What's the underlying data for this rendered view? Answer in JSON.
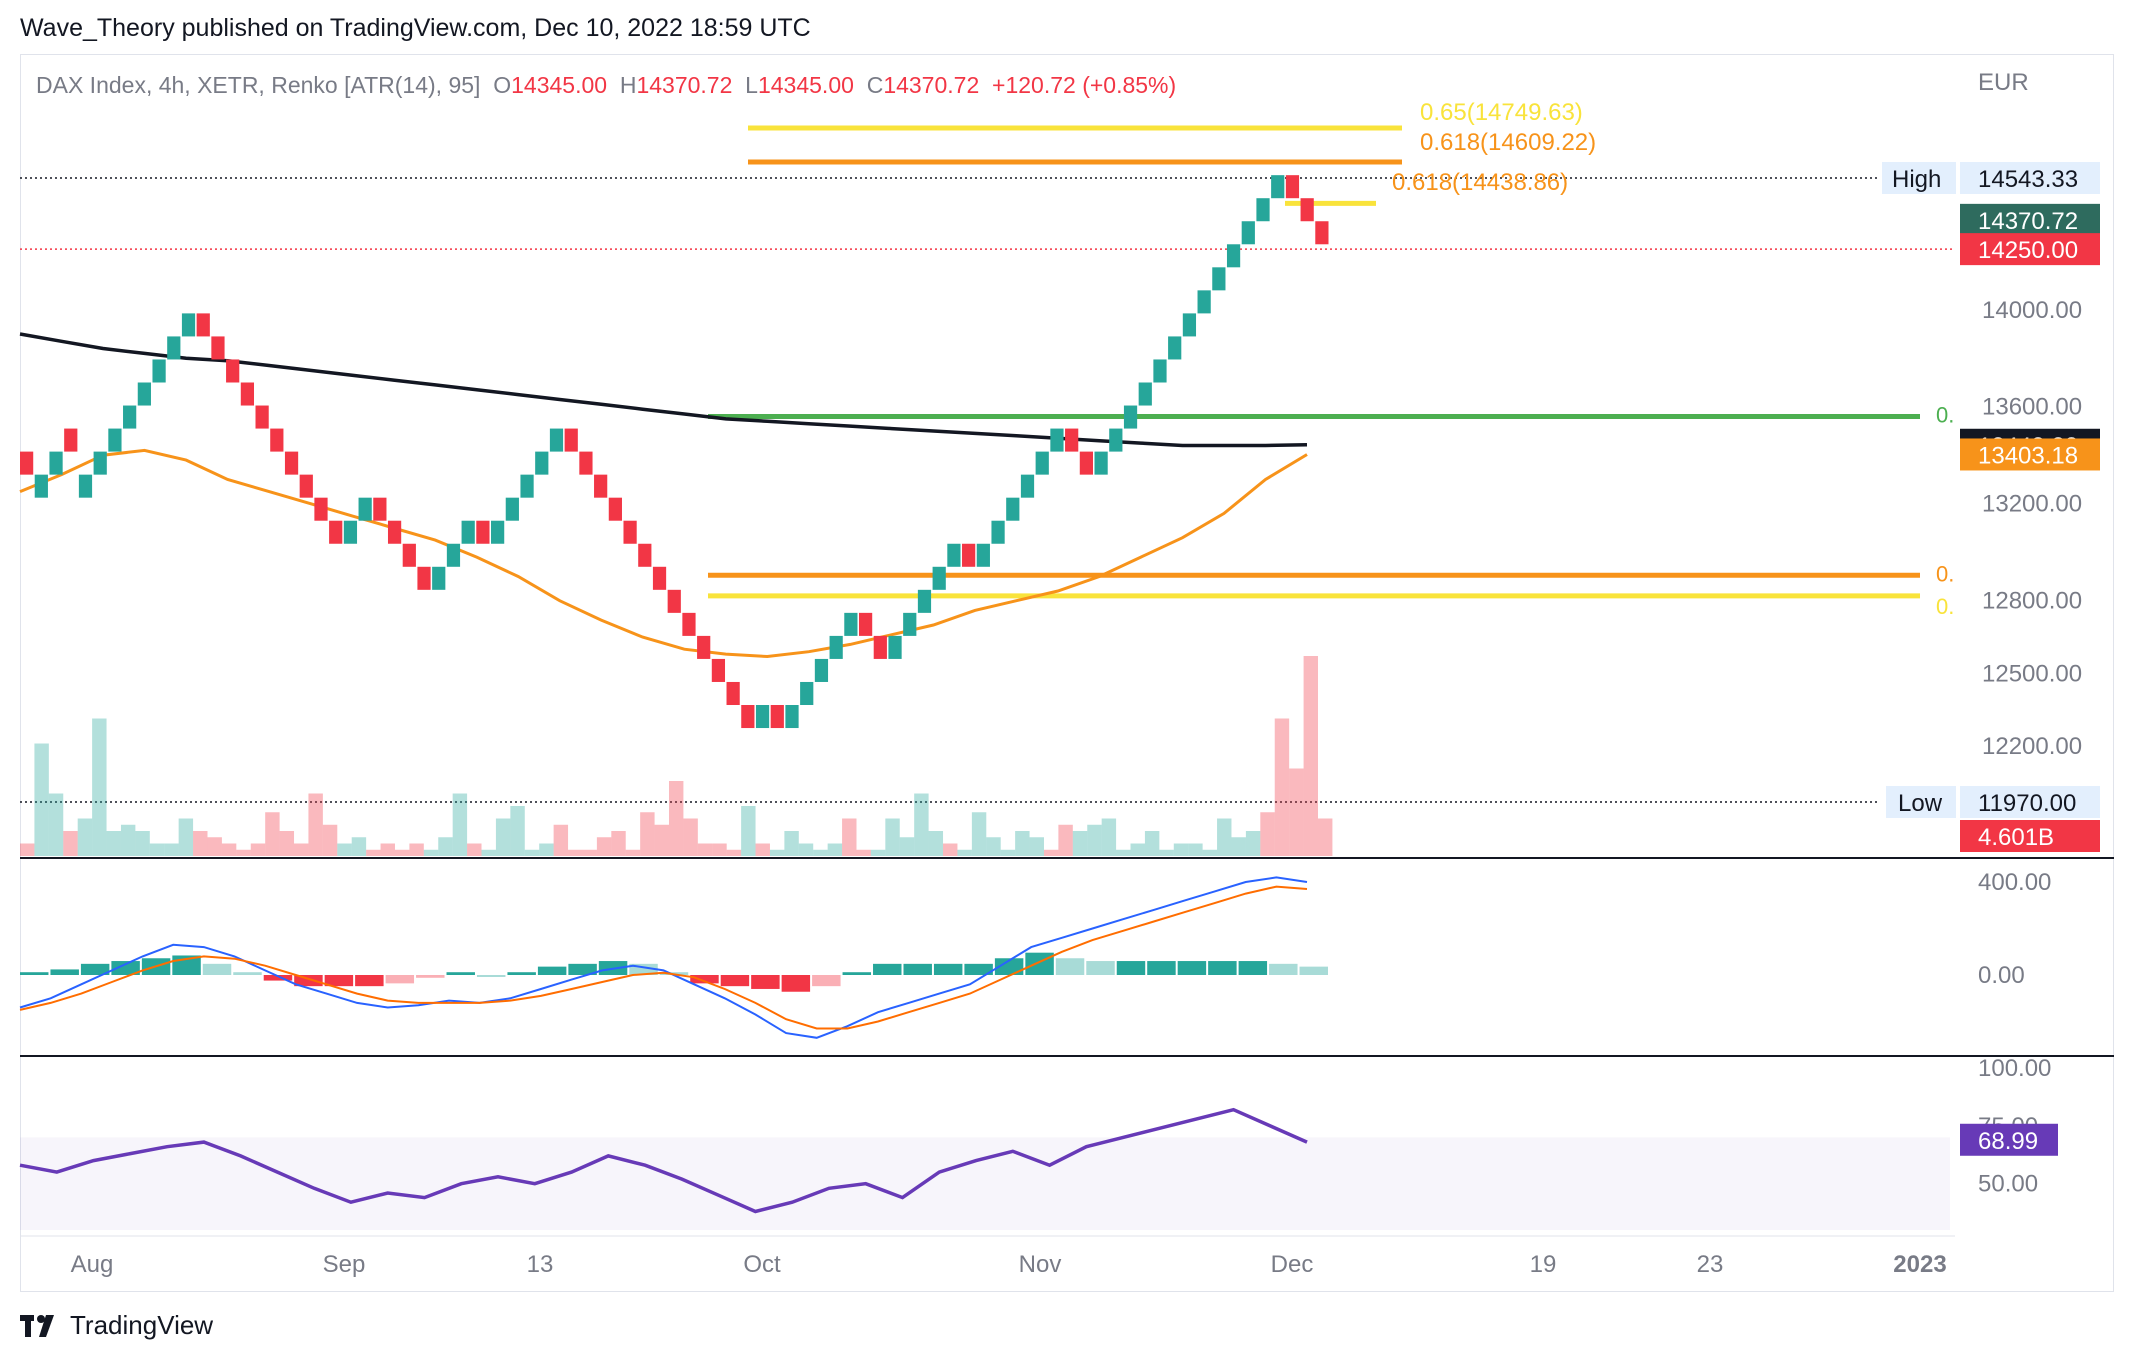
{
  "publisher_line": "Wave_Theory published on TradingView.com, Dec 10, 2022 18:59 UTC",
  "legend": {
    "symbol": "DAX Index, 4h, XETR, Renko [ATR(14), 95]",
    "o_label": "O",
    "o_value": "14345.00",
    "h_label": "H",
    "h_value": "14370.72",
    "l_label": "L",
    "l_value": "14345.00",
    "c_label": "C",
    "c_value": "14370.72",
    "change": "+120.72 (+0.85%)"
  },
  "currency": "EUR",
  "footer_brand": "TradingView",
  "colors": {
    "up": "#26a69a",
    "down": "#f23645",
    "ma_long": "#131722",
    "ma_short": "#f7931a",
    "fib_yellow": "#f9e33b",
    "fib_orange": "#f7931a",
    "fib_green": "#4caf50",
    "macd": "#2962ff",
    "signal": "#ff6d00",
    "rsi": "#673ab7"
  },
  "chart_data": {
    "type": "renko",
    "x_ticks": [
      "Aug",
      "Sep",
      "13",
      "Oct",
      "Nov",
      "Dec",
      "19",
      "23",
      "2023"
    ],
    "price_ticks": [
      "14000.00",
      "13600.00",
      "13200.00",
      "12800.00",
      "12500.00",
      "12200.00"
    ],
    "price_range": [
      11970,
      14543.33
    ],
    "high_label": "High",
    "high_value": "14543.33",
    "low_label": "Low",
    "low_value": "11970.00",
    "tags": [
      {
        "text": "14370.72",
        "bg": "#2e6b5e",
        "fg": "#ffffff"
      },
      {
        "text": "14250.00",
        "bg": "#f23645",
        "fg": "#ffffff"
      },
      {
        "text": "13443.22",
        "bg": "#131722",
        "fg": "#ffffff"
      },
      {
        "text": "13403.18",
        "bg": "#f7931a",
        "fg": "#ffffff"
      },
      {
        "text": "4.601B",
        "bg": "#f23645",
        "fg": "#ffffff"
      }
    ],
    "fib_labels": [
      {
        "text": "0.65(14749.63)",
        "price": 14749.63,
        "color": "#f9e33b"
      },
      {
        "text": "0.618(14609.22)",
        "price": 14609.22,
        "color": "#f7931a"
      },
      {
        "text": "0.618(14438.86)",
        "price": 14438.86,
        "color": "#f7931a"
      }
    ],
    "fib_lines": [
      {
        "price": 14749.63,
        "color": "#f9e33b"
      },
      {
        "price": 14609.22,
        "color": "#f7931a"
      },
      {
        "price": 14438.86,
        "color": "#f9e33b"
      },
      {
        "price": 13560,
        "color": "#4caf50",
        "label": "0."
      },
      {
        "price": 12905,
        "color": "#f7931a",
        "label": "0."
      },
      {
        "price": 12820,
        "color": "#f9e33b",
        "label": "0."
      }
    ],
    "bricks": [
      {
        "d": "down",
        "p": 13320
      },
      {
        "d": "up",
        "p": 13320
      },
      {
        "d": "up",
        "p": 13415
      },
      {
        "d": "down",
        "p": 13415
      },
      {
        "d": "up",
        "p": 13320
      },
      {
        "d": "up",
        "p": 13415
      },
      {
        "d": "up",
        "p": 13510
      },
      {
        "d": "up",
        "p": 13605
      },
      {
        "d": "up",
        "p": 13700
      },
      {
        "d": "up",
        "p": 13795
      },
      {
        "d": "up",
        "p": 13890
      },
      {
        "d": "up",
        "p": 13985
      },
      {
        "d": "down",
        "p": 13890
      },
      {
        "d": "down",
        "p": 13795
      },
      {
        "d": "down",
        "p": 13700
      },
      {
        "d": "down",
        "p": 13605
      },
      {
        "d": "down",
        "p": 13510
      },
      {
        "d": "down",
        "p": 13415
      },
      {
        "d": "down",
        "p": 13320
      },
      {
        "d": "down",
        "p": 13225
      },
      {
        "d": "down",
        "p": 13130
      },
      {
        "d": "down",
        "p": 13035
      },
      {
        "d": "up",
        "p": 13130
      },
      {
        "d": "up",
        "p": 13225
      },
      {
        "d": "down",
        "p": 13130
      },
      {
        "d": "down",
        "p": 13035
      },
      {
        "d": "down",
        "p": 12940
      },
      {
        "d": "down",
        "p": 12845
      },
      {
        "d": "up",
        "p": 12940
      },
      {
        "d": "up",
        "p": 13035
      },
      {
        "d": "up",
        "p": 13130
      },
      {
        "d": "down",
        "p": 13035
      },
      {
        "d": "up",
        "p": 13130
      },
      {
        "d": "up",
        "p": 13225
      },
      {
        "d": "up",
        "p": 13320
      },
      {
        "d": "up",
        "p": 13415
      },
      {
        "d": "up",
        "p": 13510
      },
      {
        "d": "down",
        "p": 13415
      },
      {
        "d": "down",
        "p": 13320
      },
      {
        "d": "down",
        "p": 13225
      },
      {
        "d": "down",
        "p": 13130
      },
      {
        "d": "down",
        "p": 13035
      },
      {
        "d": "down",
        "p": 12940
      },
      {
        "d": "down",
        "p": 12845
      },
      {
        "d": "down",
        "p": 12750
      },
      {
        "d": "down",
        "p": 12655
      },
      {
        "d": "down",
        "p": 12560
      },
      {
        "d": "down",
        "p": 12465
      },
      {
        "d": "down",
        "p": 12370
      },
      {
        "d": "down",
        "p": 12275
      },
      {
        "d": "up",
        "p": 12370
      },
      {
        "d": "down",
        "p": 12275
      },
      {
        "d": "up",
        "p": 12370
      },
      {
        "d": "up",
        "p": 12465
      },
      {
        "d": "up",
        "p": 12560
      },
      {
        "d": "up",
        "p": 12655
      },
      {
        "d": "up",
        "p": 12750
      },
      {
        "d": "down",
        "p": 12655
      },
      {
        "d": "down",
        "p": 12560
      },
      {
        "d": "up",
        "p": 12655
      },
      {
        "d": "up",
        "p": 12750
      },
      {
        "d": "up",
        "p": 12845
      },
      {
        "d": "up",
        "p": 12940
      },
      {
        "d": "up",
        "p": 13035
      },
      {
        "d": "down",
        "p": 12940
      },
      {
        "d": "up",
        "p": 13035
      },
      {
        "d": "up",
        "p": 13130
      },
      {
        "d": "up",
        "p": 13225
      },
      {
        "d": "up",
        "p": 13320
      },
      {
        "d": "up",
        "p": 13415
      },
      {
        "d": "up",
        "p": 13510
      },
      {
        "d": "down",
        "p": 13415
      },
      {
        "d": "down",
        "p": 13320
      },
      {
        "d": "up",
        "p": 13415
      },
      {
        "d": "up",
        "p": 13510
      },
      {
        "d": "up",
        "p": 13605
      },
      {
        "d": "up",
        "p": 13700
      },
      {
        "d": "up",
        "p": 13795
      },
      {
        "d": "up",
        "p": 13890
      },
      {
        "d": "up",
        "p": 13985
      },
      {
        "d": "up",
        "p": 14080
      },
      {
        "d": "up",
        "p": 14175
      },
      {
        "d": "up",
        "p": 14270
      },
      {
        "d": "up",
        "p": 14365
      },
      {
        "d": "up",
        "p": 14460
      },
      {
        "d": "up",
        "p": 14555
      },
      {
        "d": "down",
        "p": 14460
      },
      {
        "d": "down",
        "p": 14365
      },
      {
        "d": "down",
        "p": 14270
      }
    ],
    "ma_long": [
      13900,
      13870,
      13840,
      13820,
      13800,
      13790,
      13770,
      13750,
      13730,
      13710,
      13690,
      13670,
      13650,
      13630,
      13610,
      13590,
      13570,
      13550,
      13540,
      13530,
      13520,
      13510,
      13500,
      13490,
      13480,
      13470,
      13460,
      13450,
      13440,
      13440,
      13440,
      13443
    ],
    "ma_short": [
      13250,
      13320,
      13400,
      13420,
      13380,
      13300,
      13250,
      13200,
      13150,
      13100,
      13050,
      12980,
      12900,
      12800,
      12720,
      12650,
      12600,
      12580,
      12570,
      12590,
      12620,
      12660,
      12700,
      12760,
      12800,
      12840,
      12900,
      12980,
      13060,
      13160,
      13300,
      13403
    ],
    "volume": [
      0.1,
      0.9,
      0.5,
      0.2,
      0.3,
      1.1,
      0.2,
      0.25,
      0.2,
      0.1,
      0.1,
      0.3,
      0.2,
      0.15,
      0.1,
      0.05,
      0.1,
      0.35,
      0.2,
      0.1,
      0.5,
      0.25,
      0.1,
      0.15,
      0.05,
      0.1,
      0.05,
      0.1,
      0.05,
      0.15,
      0.5,
      0.1,
      0.05,
      0.3,
      0.4,
      0.05,
      0.1,
      0.25,
      0.05,
      0.05,
      0.15,
      0.2,
      0.05,
      0.35,
      0.25,
      0.6,
      0.3,
      0.1,
      0.1,
      0.05,
      0.4,
      0.1,
      0.05,
      0.2,
      0.1,
      0.05,
      0.1,
      0.3,
      0.05,
      0.05,
      0.3,
      0.15,
      0.5,
      0.2,
      0.1,
      0.05,
      0.35,
      0.15,
      0.05,
      0.2,
      0.15,
      0.05,
      0.25,
      0.2,
      0.25,
      0.3,
      0.05,
      0.1,
      0.2,
      0.05,
      0.1,
      0.1,
      0.05,
      0.3,
      0.15,
      0.2,
      0.35,
      1.1,
      0.7,
      1.6,
      0.3
    ],
    "macd_ticks": [
      "400.00",
      "0.00"
    ],
    "macd": [
      -140,
      -100,
      -40,
      20,
      80,
      130,
      120,
      80,
      20,
      -40,
      -80,
      -120,
      -140,
      -130,
      -110,
      -120,
      -100,
      -60,
      -20,
      20,
      40,
      20,
      -40,
      -100,
      -170,
      -250,
      -270,
      -220,
      -160,
      -120,
      -80,
      -40,
      40,
      120,
      160,
      200,
      240,
      280,
      320,
      360,
      400,
      420,
      400
    ],
    "signal": [
      -150,
      -120,
      -80,
      -30,
      20,
      60,
      80,
      70,
      40,
      0,
      -40,
      -80,
      -110,
      -120,
      -120,
      -120,
      -110,
      -90,
      -60,
      -30,
      0,
      10,
      -10,
      -60,
      -120,
      -190,
      -230,
      -230,
      -200,
      -160,
      -120,
      -80,
      -20,
      40,
      100,
      150,
      190,
      230,
      270,
      310,
      350,
      380,
      370
    ],
    "rsi_ticks": [
      "100.00",
      "75.00",
      "50.00"
    ],
    "rsi_value": "68.99",
    "rsi": [
      58,
      55,
      60,
      63,
      66,
      68,
      62,
      55,
      48,
      42,
      46,
      44,
      50,
      53,
      50,
      55,
      62,
      58,
      52,
      45,
      38,
      42,
      48,
      50,
      44,
      55,
      60,
      64,
      58,
      66,
      70,
      74,
      78,
      82,
      75,
      68
    ]
  }
}
